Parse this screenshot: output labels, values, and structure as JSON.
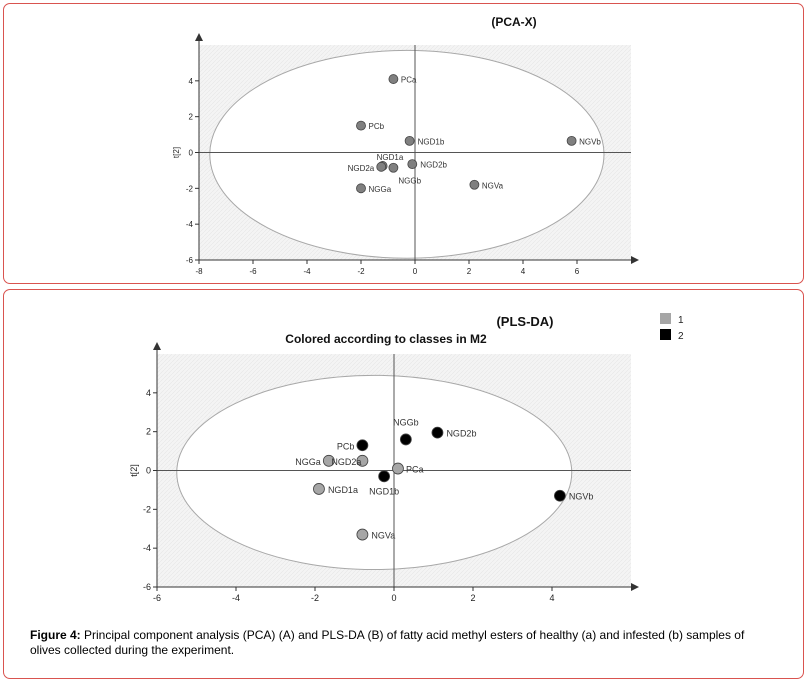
{
  "chart_data": [
    {
      "type": "scatter",
      "title": "(PCA-X)",
      "xlabel": "",
      "ylabel": "t[2]",
      "xlim": [
        -8,
        8
      ],
      "ylim": [
        -6,
        6
      ],
      "xticks": [
        "-8",
        "-6",
        "-4",
        "-2",
        "0",
        "2",
        "4",
        "6"
      ],
      "yticks": [
        "-6",
        "-4",
        "-2",
        "0",
        "2",
        "4"
      ],
      "xtick_values": [
        -8,
        -6,
        -4,
        -2,
        0,
        2,
        4,
        6
      ],
      "ytick_values": [
        -6,
        -4,
        -2,
        0,
        2,
        4
      ],
      "ellipse": {
        "cx": -0.3,
        "cy": -0.1,
        "rx": 7.3,
        "ry": 5.8
      },
      "points": [
        {
          "label": "PCa",
          "x": -0.8,
          "y": 4.1,
          "color": "#808080"
        },
        {
          "label": "PCb",
          "x": -2.0,
          "y": 1.5,
          "color": "#808080"
        },
        {
          "label": "NGD1b",
          "x": -0.2,
          "y": 0.65,
          "color": "#808080"
        },
        {
          "label": "NGVb",
          "x": 5.8,
          "y": 0.65,
          "color": "#808080"
        },
        {
          "label": "NGD1a",
          "x": -1.2,
          "y": -0.75,
          "color": "#808080"
        },
        {
          "label": "NGD2a",
          "x": -1.25,
          "y": -0.8,
          "color": "#808080"
        },
        {
          "label": "NGGb",
          "x": -0.8,
          "y": -0.85,
          "color": "#808080"
        },
        {
          "label": "NGD2b",
          "x": -0.1,
          "y": -0.65,
          "color": "#808080"
        },
        {
          "label": "NGGa",
          "x": -2.0,
          "y": -2.0,
          "color": "#808080"
        },
        {
          "label": "NGVa",
          "x": 2.2,
          "y": -1.8,
          "color": "#808080"
        }
      ]
    },
    {
      "type": "scatter",
      "title": "(PLS-DA)",
      "subtitle": "Colored according to classes in M2",
      "xlabel": "",
      "ylabel": "t[2]",
      "xlim": [
        -6,
        6
      ],
      "ylim": [
        -6,
        6
      ],
      "xticks": [
        "-6",
        "-4",
        "-2",
        "0",
        "2",
        "4"
      ],
      "yticks": [
        "-6",
        "-4",
        "-2",
        "0",
        "2",
        "4"
      ],
      "xtick_values": [
        -6,
        -4,
        -2,
        0,
        2,
        4
      ],
      "ytick_values": [
        -6,
        -4,
        -2,
        0,
        2,
        4
      ],
      "ellipse": {
        "cx": -0.5,
        "cy": -0.1,
        "rx": 5.0,
        "ry": 5.0
      },
      "legend": {
        "position": "top-right",
        "entries": [
          {
            "name": "1",
            "color": "#a6a6a6"
          },
          {
            "name": "2",
            "color": "#000000"
          }
        ]
      },
      "points": [
        {
          "label": "PCa",
          "x": 0.1,
          "y": 0.1,
          "class": "1"
        },
        {
          "label": "PCb",
          "x": -0.8,
          "y": 1.3,
          "class": "2"
        },
        {
          "label": "NGGb",
          "x": 0.3,
          "y": 1.6,
          "class": "2"
        },
        {
          "label": "NGD2b",
          "x": 1.1,
          "y": 1.95,
          "class": "2"
        },
        {
          "label": "NGGa",
          "x": -1.65,
          "y": 0.5,
          "class": "1"
        },
        {
          "label": "NGD2a",
          "x": -0.8,
          "y": 0.5,
          "class": "1"
        },
        {
          "label": "NGD1b",
          "x": -0.25,
          "y": -0.3,
          "class": "2"
        },
        {
          "label": "NGD1a",
          "x": -1.9,
          "y": -0.95,
          "class": "1"
        },
        {
          "label": "NGVb",
          "x": 4.2,
          "y": -1.3,
          "class": "2"
        },
        {
          "label": "NGVa",
          "x": -0.8,
          "y": -3.3,
          "class": "1"
        }
      ]
    }
  ],
  "caption": {
    "label": "Figure 4:",
    "text": " Principal component analysis (PCA) (A) and PLS-DA (B) of fatty acid methyl esters of healthy (a) and infested (b) samples of olives collected during the experiment."
  }
}
